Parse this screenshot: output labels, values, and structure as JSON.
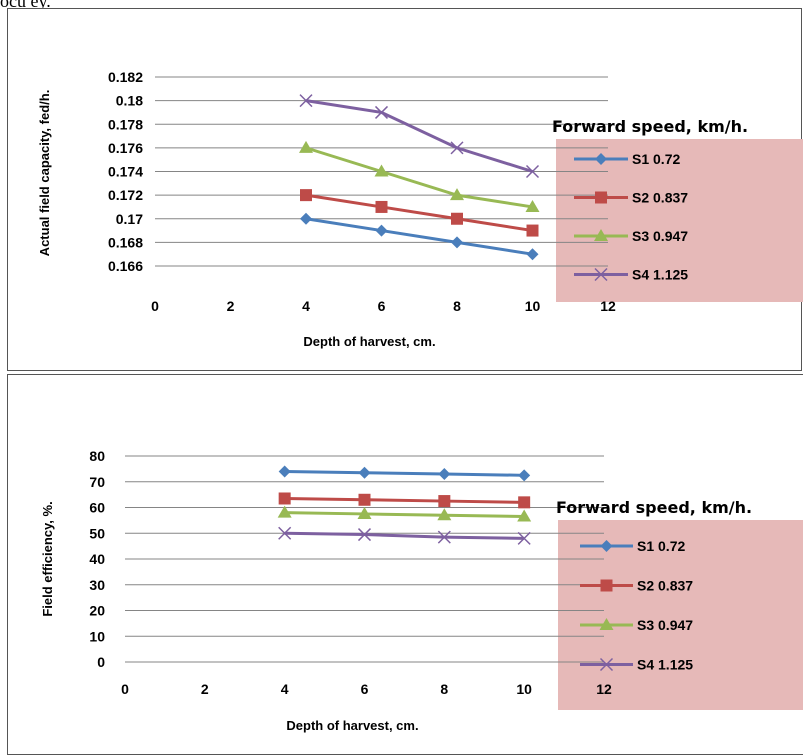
{
  "chart_data": [
    {
      "type": "line",
      "xlabel": "Depth of harvest, cm.",
      "ylabel": "Actual field capacity, fed/h.",
      "xlim": [
        0,
        12
      ],
      "ylim": [
        0.166,
        0.182
      ],
      "x_ticks": [
        "0",
        "2",
        "4",
        "6",
        "8",
        "10",
        "12"
      ],
      "y_ticks": [
        "0.166",
        "0.168",
        "0.17",
        "0.172",
        "0.174",
        "0.176",
        "0.178",
        "0.18",
        "0.182"
      ],
      "grid": true,
      "legend_title": "Forward speed, km/h.",
      "legend_position": "right",
      "series": [
        {
          "name": "S1  0.72",
          "color": "#4a7ebb",
          "marker": "diamond",
          "x": [
            4,
            6,
            8,
            10
          ],
          "values": [
            0.17,
            0.169,
            0.168,
            0.167
          ]
        },
        {
          "name": "S2   0.837",
          "color": "#be4b48",
          "marker": "square",
          "x": [
            4,
            6,
            8,
            10
          ],
          "values": [
            0.172,
            0.171,
            0.17,
            0.169
          ]
        },
        {
          "name": "S3   0.947",
          "color": "#98b954",
          "marker": "triangle",
          "x": [
            4,
            6,
            8,
            10
          ],
          "values": [
            0.176,
            0.174,
            0.172,
            0.171
          ]
        },
        {
          "name": "S4   1.125",
          "color": "#7d60a0",
          "marker": "x",
          "x": [
            4,
            6,
            8,
            10
          ],
          "values": [
            0.18,
            0.179,
            0.176,
            0.174
          ]
        }
      ]
    },
    {
      "type": "line",
      "xlabel": "Depth of harvest, cm.",
      "ylabel": "Field efficiency, %.",
      "xlim": [
        0,
        12
      ],
      "ylim": [
        0,
        80
      ],
      "x_ticks": [
        "0",
        "2",
        "4",
        "6",
        "8",
        "10",
        "12"
      ],
      "y_ticks": [
        "0",
        "10",
        "20",
        "30",
        "40",
        "50",
        "60",
        "70",
        "80"
      ],
      "grid": true,
      "legend_title": "Forward speed, km/h.",
      "legend_position": "right",
      "series": [
        {
          "name": "S1  0.72",
          "color": "#4a7ebb",
          "marker": "diamond",
          "x": [
            4,
            6,
            8,
            10
          ],
          "values": [
            74,
            73.5,
            73,
            72.5
          ]
        },
        {
          "name": "S2   0.837",
          "color": "#be4b48",
          "marker": "square",
          "x": [
            4,
            6,
            8,
            10
          ],
          "values": [
            63.5,
            63,
            62.5,
            62
          ]
        },
        {
          "name": "S3   0.947",
          "color": "#98b954",
          "marker": "triangle",
          "x": [
            4,
            6,
            8,
            10
          ],
          "values": [
            58,
            57.5,
            57,
            56.5
          ]
        },
        {
          "name": "S4   1.125",
          "color": "#7d60a0",
          "marker": "x",
          "x": [
            4,
            6,
            8,
            10
          ],
          "values": [
            50,
            49.5,
            48.5,
            48
          ]
        }
      ]
    }
  ]
}
